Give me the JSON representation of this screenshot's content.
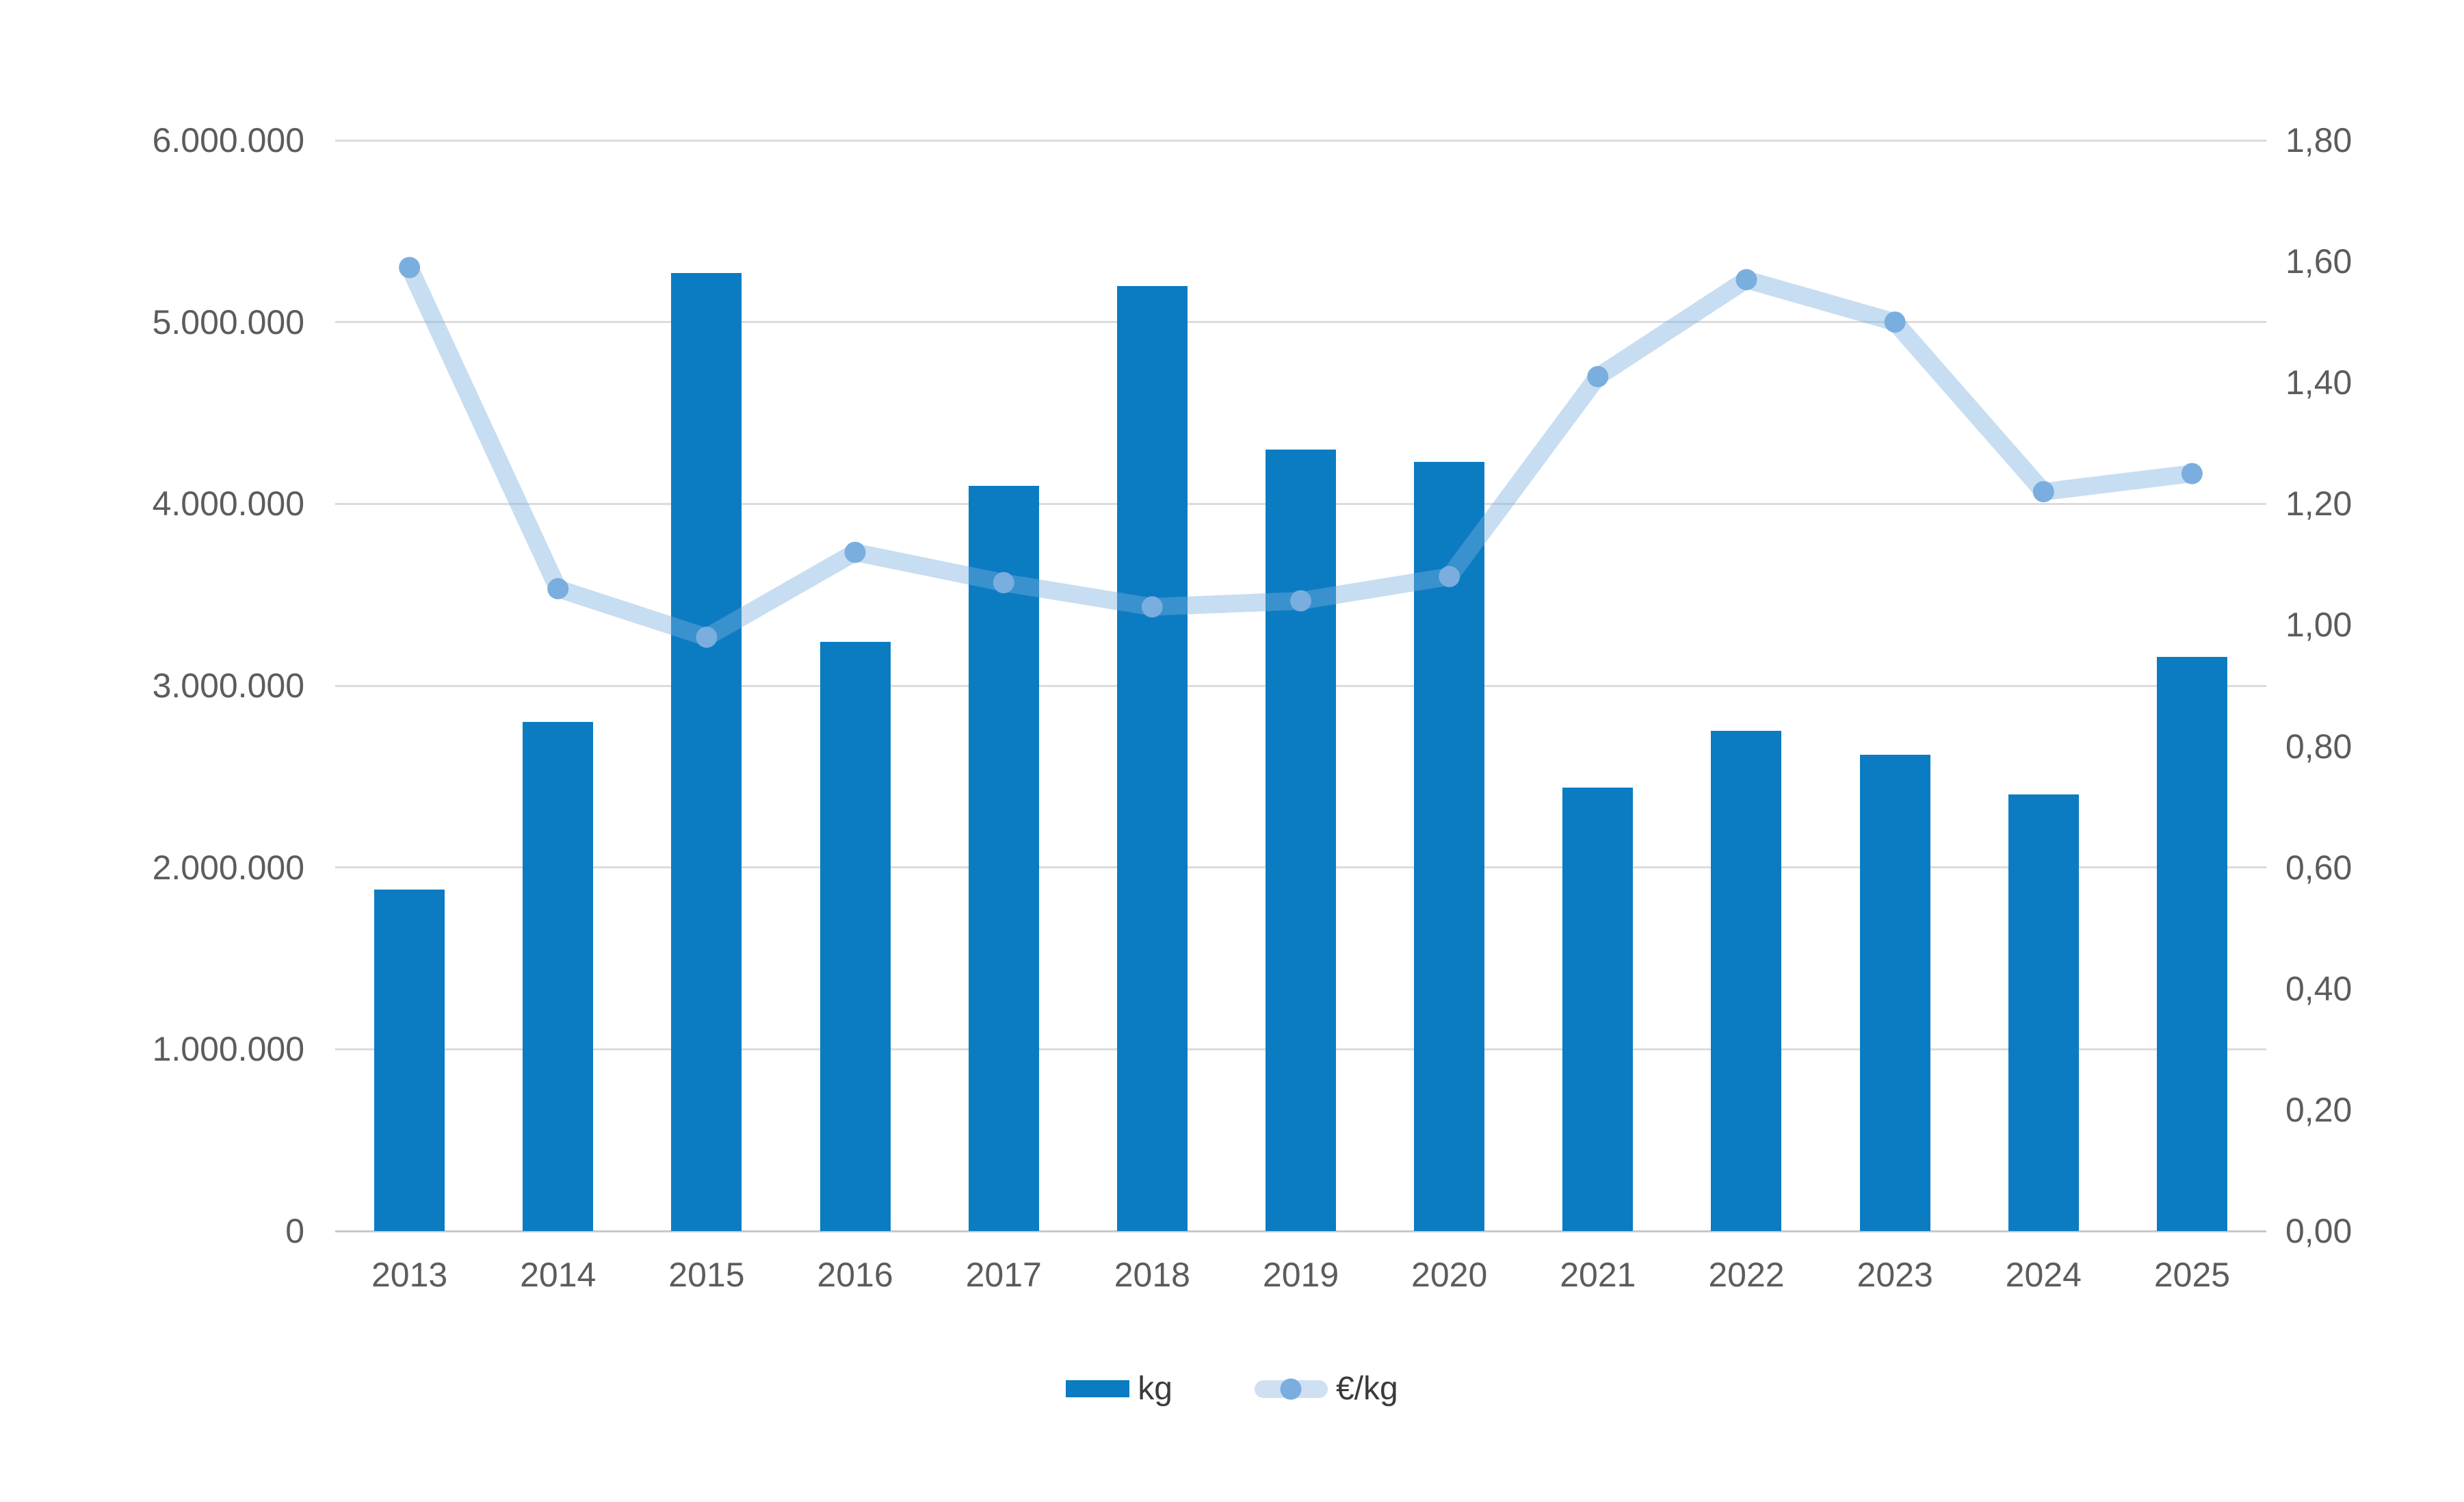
{
  "chart_data": {
    "type": "bar",
    "subtype": "combo-bar-line-dual-axis",
    "title": "",
    "categories": [
      "2013",
      "2014",
      "2015",
      "2016",
      "2017",
      "2018",
      "2019",
      "2020",
      "2021",
      "2022",
      "2023",
      "2024",
      "2025"
    ],
    "series": [
      {
        "name": "kg",
        "type": "bar",
        "axis": "left",
        "values": [
          1880000,
          2800000,
          5270000,
          3240000,
          4100000,
          5200000,
          4300000,
          4230000,
          2440000,
          2750000,
          2620000,
          2400000,
          3160000
        ]
      },
      {
        "name": "€/kg",
        "type": "line",
        "axis": "right",
        "values": [
          1.59,
          1.06,
          0.98,
          1.12,
          1.07,
          1.03,
          1.04,
          1.08,
          1.41,
          1.57,
          1.5,
          1.22,
          1.25
        ]
      }
    ],
    "left_axis": {
      "min": 0,
      "max": 6000000,
      "tick_labels": [
        "6.000.000",
        "5.000.000",
        "4.000.000",
        "3.000.000",
        "2.000.000",
        "1.000.000",
        "0"
      ]
    },
    "right_axis": {
      "min": 0,
      "max": 1.8,
      "tick_labels": [
        "1,80",
        "1,60",
        "1,40",
        "1,20",
        "1,00",
        "0,80",
        "0,60",
        "0,40",
        "0,20",
        "0,00"
      ]
    },
    "grid": true,
    "legend_position": "bottom"
  },
  "legend": {
    "items": [
      {
        "label": "kg",
        "marker": "bar-swatch"
      },
      {
        "label": "€/kg",
        "marker": "line-dot-swatch"
      }
    ]
  },
  "colors": {
    "bar": "#0b7cc1",
    "line": "rgba(122,174,222,0.42)",
    "line_solid": "#cfe0f3",
    "point": "#7aaede",
    "grid": "#dcdcdc",
    "grid_baseline": "#c9c9c9",
    "axis_text": "#5c5c5c",
    "legend_text": "#3a3a3a",
    "background": "#ffffff"
  }
}
